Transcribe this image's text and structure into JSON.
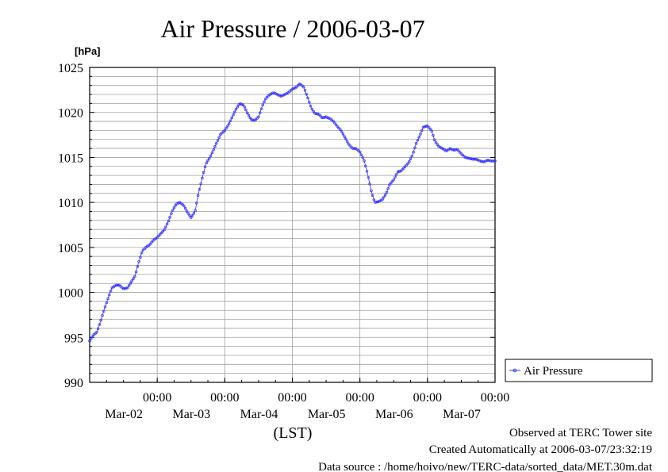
{
  "colors": {
    "series": "#3333ff",
    "grid": "#a0a0a0",
    "frame": "#000000",
    "background": "#ffffff"
  },
  "footer": {
    "observed": "Observed at TERC Tower site",
    "created": "Created Automatically at 2006-03-07/23:32:19",
    "source": "Data source : /home/hoivo/new/TERC-data/sorted_data/MET.30m.dat"
  },
  "chart_data": {
    "type": "line",
    "title": "Air Pressure / 2006-03-07",
    "ylabel": "[hPa]",
    "xlabel": "(LST)",
    "ylim": [
      990,
      1025
    ],
    "yticks": [
      990,
      995,
      1000,
      1005,
      1010,
      1015,
      1020,
      1025
    ],
    "xlim_days": [
      1.0,
      7.0
    ],
    "xticks": [
      {
        "day": 2.0,
        "time": "00:00",
        "date": "Mar-02"
      },
      {
        "day": 3.0,
        "time": "00:00",
        "date": "Mar-03"
      },
      {
        "day": 4.0,
        "time": "00:00",
        "date": "Mar-04"
      },
      {
        "day": 5.0,
        "time": "00:00",
        "date": "Mar-05"
      },
      {
        "day": 6.0,
        "time": "00:00",
        "date": "Mar-06"
      },
      {
        "day": 7.0,
        "time": "00:00",
        "date": "Mar-07"
      }
    ],
    "grid": true,
    "legend_position": "right",
    "series": [
      {
        "name": "Air Pressure",
        "marker": "open-circle",
        "points": [
          [
            1.0,
            994.6
          ],
          [
            1.06,
            995.3
          ],
          [
            1.11,
            995.6
          ],
          [
            1.17,
            997.0
          ],
          [
            1.22,
            998.2
          ],
          [
            1.28,
            999.5
          ],
          [
            1.33,
            1000.5
          ],
          [
            1.39,
            1000.8
          ],
          [
            1.44,
            1000.8
          ],
          [
            1.5,
            1000.4
          ],
          [
            1.56,
            1000.5
          ],
          [
            1.61,
            1001.1
          ],
          [
            1.67,
            1001.8
          ],
          [
            1.72,
            1003.2
          ],
          [
            1.78,
            1004.6
          ],
          [
            1.83,
            1005.0
          ],
          [
            1.89,
            1005.3
          ],
          [
            1.94,
            1005.8
          ],
          [
            2.0,
            1006.1
          ],
          [
            2.06,
            1006.6
          ],
          [
            2.11,
            1007.0
          ],
          [
            2.17,
            1008.0
          ],
          [
            2.22,
            1009.0
          ],
          [
            2.28,
            1009.8
          ],
          [
            2.33,
            1010.0
          ],
          [
            2.39,
            1009.7
          ],
          [
            2.44,
            1009.0
          ],
          [
            2.5,
            1008.3
          ],
          [
            2.56,
            1009.0
          ],
          [
            2.61,
            1011.0
          ],
          [
            2.67,
            1012.8
          ],
          [
            2.72,
            1014.3
          ],
          [
            2.78,
            1015.0
          ],
          [
            2.83,
            1015.8
          ],
          [
            2.89,
            1016.8
          ],
          [
            2.94,
            1017.6
          ],
          [
            3.0,
            1018.0
          ],
          [
            3.06,
            1018.7
          ],
          [
            3.11,
            1019.5
          ],
          [
            3.17,
            1020.4
          ],
          [
            3.22,
            1021.0
          ],
          [
            3.28,
            1020.8
          ],
          [
            3.33,
            1020.0
          ],
          [
            3.39,
            1019.2
          ],
          [
            3.44,
            1019.1
          ],
          [
            3.5,
            1019.5
          ],
          [
            3.56,
            1020.8
          ],
          [
            3.61,
            1021.6
          ],
          [
            3.67,
            1022.0
          ],
          [
            3.72,
            1022.2
          ],
          [
            3.78,
            1022.0
          ],
          [
            3.83,
            1021.8
          ],
          [
            3.89,
            1022.0
          ],
          [
            3.94,
            1022.2
          ],
          [
            4.0,
            1022.6
          ],
          [
            4.06,
            1022.8
          ],
          [
            4.11,
            1023.2
          ],
          [
            4.17,
            1022.8
          ],
          [
            4.22,
            1021.8
          ],
          [
            4.28,
            1020.5
          ],
          [
            4.33,
            1019.9
          ],
          [
            4.39,
            1019.8
          ],
          [
            4.44,
            1019.4
          ],
          [
            4.5,
            1019.5
          ],
          [
            4.56,
            1019.3
          ],
          [
            4.61,
            1019.0
          ],
          [
            4.67,
            1018.4
          ],
          [
            4.72,
            1018.0
          ],
          [
            4.78,
            1017.2
          ],
          [
            4.83,
            1016.5
          ],
          [
            4.89,
            1016.0
          ],
          [
            4.94,
            1016.0
          ],
          [
            5.0,
            1015.6
          ],
          [
            5.06,
            1014.7
          ],
          [
            5.11,
            1013.3
          ],
          [
            5.17,
            1011.2
          ],
          [
            5.22,
            1010.0
          ],
          [
            5.28,
            1010.1
          ],
          [
            5.33,
            1010.3
          ],
          [
            5.39,
            1011.0
          ],
          [
            5.44,
            1012.0
          ],
          [
            5.5,
            1012.5
          ],
          [
            5.56,
            1013.4
          ],
          [
            5.61,
            1013.5
          ],
          [
            5.67,
            1014.0
          ],
          [
            5.72,
            1014.4
          ],
          [
            5.78,
            1015.3
          ],
          [
            5.83,
            1016.5
          ],
          [
            5.89,
            1017.5
          ],
          [
            5.94,
            1018.4
          ],
          [
            6.0,
            1018.5
          ],
          [
            6.06,
            1018.0
          ],
          [
            6.11,
            1016.8
          ],
          [
            6.17,
            1016.2
          ],
          [
            6.22,
            1016.0
          ],
          [
            6.28,
            1015.7
          ],
          [
            6.33,
            1016.0
          ],
          [
            6.39,
            1015.8
          ],
          [
            6.44,
            1015.9
          ],
          [
            6.5,
            1015.4
          ],
          [
            6.56,
            1015.0
          ],
          [
            6.61,
            1014.9
          ],
          [
            6.67,
            1014.8
          ],
          [
            6.72,
            1014.8
          ],
          [
            6.78,
            1014.6
          ],
          [
            6.83,
            1014.5
          ],
          [
            6.89,
            1014.7
          ],
          [
            6.94,
            1014.6
          ],
          [
            7.0,
            1014.6
          ]
        ]
      }
    ]
  }
}
